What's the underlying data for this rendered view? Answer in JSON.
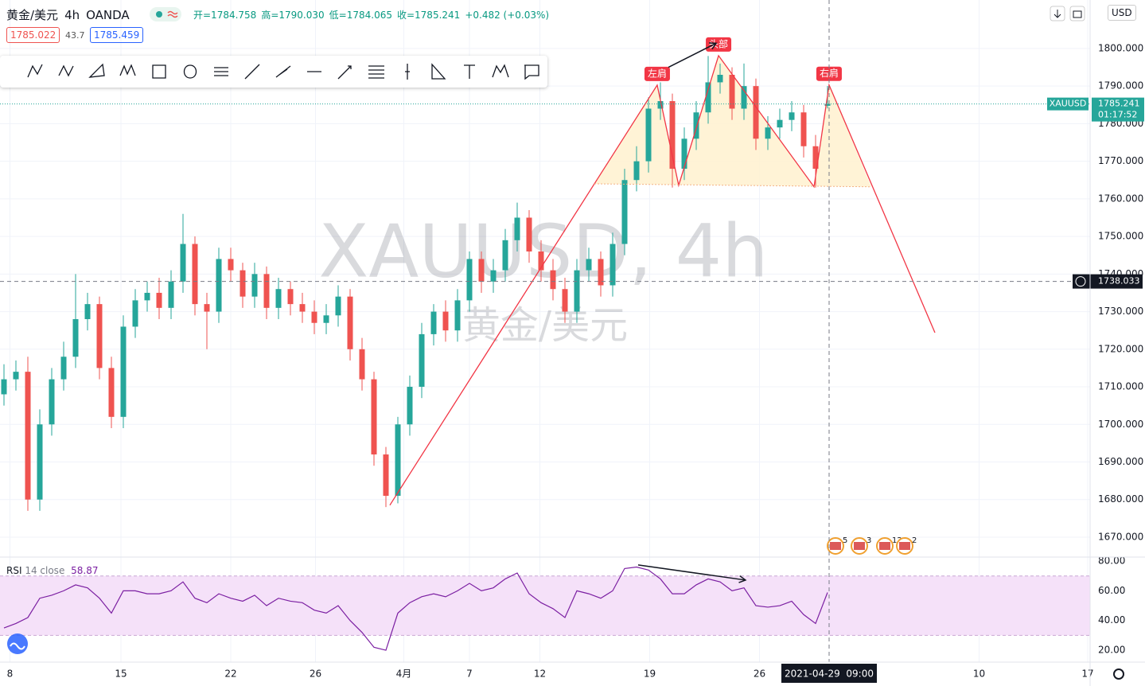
{
  "header": {
    "symbol": "黄金/美元",
    "interval": "4h",
    "source": "OANDA",
    "ohlc_text": [
      "开=1784.758",
      "高=1790.030",
      "低=1784.065",
      "收=1785.241",
      "+0.482 (+0.03%)"
    ],
    "bid": "1785.022",
    "spread": "43.7",
    "ask": "1785.459",
    "currency": "USD"
  },
  "chart_data": [
    {
      "type": "candlestick",
      "open": [
        1708,
        1712,
        1714,
        1680,
        1700,
        1712,
        1718,
        1728,
        1732,
        1715,
        1702,
        1726,
        1733,
        1735,
        1731,
        1738,
        1748,
        1732,
        1730,
        1744,
        1741,
        1734,
        1740,
        1731,
        1736,
        1732,
        1730,
        1727,
        1729,
        1734,
        1720,
        1712,
        1692,
        1681,
        1700,
        1710,
        1724,
        1730,
        1725,
        1733,
        1744,
        1738,
        1741,
        1749,
        1755,
        1746,
        1741,
        1736,
        1730,
        1741,
        1744,
        1737,
        1748,
        1765,
        1770,
        1784,
        1786,
        1768,
        1776,
        1783,
        1791,
        1793,
        1784,
        1790,
        1776,
        1779,
        1781,
        1783,
        1774,
        1784.758
      ],
      "high": [
        1716,
        1717,
        1718,
        1704,
        1715,
        1722,
        1740,
        1735,
        1734,
        1718,
        1729,
        1736,
        1738,
        1739,
        1741,
        1756,
        1750,
        1735,
        1747,
        1747,
        1743,
        1743,
        1742,
        1739,
        1738,
        1735,
        1733,
        1732,
        1737,
        1736,
        1723,
        1714,
        1694,
        1702,
        1713,
        1727,
        1732,
        1733,
        1736,
        1746,
        1746,
        1744,
        1752,
        1759,
        1757,
        1749,
        1744,
        1739,
        1744,
        1747,
        1746,
        1751,
        1768,
        1774,
        1787,
        1791,
        1788,
        1779,
        1786,
        1798,
        1796,
        1795,
        1796,
        1792,
        1782,
        1784,
        1786,
        1785,
        1777,
        1790.03
      ],
      "low": [
        1705,
        1709,
        1677,
        1677,
        1697,
        1709,
        1715,
        1725,
        1712,
        1699,
        1699,
        1723,
        1730,
        1728,
        1728,
        1735,
        1729,
        1720,
        1727,
        1738,
        1731,
        1731,
        1728,
        1728,
        1729,
        1727,
        1724,
        1724,
        1726,
        1717,
        1709,
        1689,
        1678,
        1679,
        1697,
        1707,
        1721,
        1722,
        1722,
        1730,
        1735,
        1735,
        1738,
        1746,
        1743,
        1738,
        1733,
        1727,
        1727,
        1738,
        1734,
        1734,
        1745,
        1762,
        1767,
        1781,
        1763,
        1765,
        1773,
        1780,
        1788,
        1781,
        1781,
        1773,
        1773,
        1776,
        1778,
        1771,
        1763,
        1784.065
      ],
      "close": [
        1712,
        1714,
        1680,
        1700,
        1712,
        1718,
        1728,
        1732,
        1715,
        1702,
        1726,
        1733,
        1735,
        1731,
        1738,
        1748,
        1732,
        1730,
        1744,
        1741,
        1734,
        1740,
        1731,
        1736,
        1732,
        1730,
        1727,
        1729,
        1734,
        1720,
        1712,
        1692,
        1681,
        1700,
        1710,
        1724,
        1730,
        1725,
        1733,
        1744,
        1738,
        1741,
        1749,
        1755,
        1746,
        1741,
        1736,
        1730,
        1741,
        1744,
        1737,
        1748,
        1765,
        1770,
        1784,
        1786,
        1768,
        1776,
        1783,
        1791,
        1793,
        1784,
        1790,
        1776,
        1779,
        1781,
        1783,
        1774,
        1768,
        1785.241
      ],
      "up_color": "#26a69a",
      "down_color": "#ef5350",
      "xlim": [
        -0.333,
        91
      ],
      "ylim": [
        1664.7,
        1812.9
      ],
      "yticks": [
        {
          "value": 1670,
          "label": "1670.000"
        },
        {
          "value": 1680,
          "label": "1680.000"
        },
        {
          "value": 1690,
          "label": "1690.000"
        },
        {
          "value": 1700,
          "label": "1700.000"
        },
        {
          "value": 1710,
          "label": "1710.000"
        },
        {
          "value": 1720,
          "label": "1720.000"
        },
        {
          "value": 1730,
          "label": "1730.000"
        },
        {
          "value": 1740,
          "label": "1740.000"
        },
        {
          "value": 1750,
          "label": "1750.000"
        },
        {
          "value": 1760,
          "label": "1760.000"
        },
        {
          "value": 1770,
          "label": "1770.000"
        },
        {
          "value": 1780,
          "label": "1780.000"
        },
        {
          "value": 1790,
          "label": "1790.000"
        },
        {
          "value": 1800,
          "label": "1800.000"
        }
      ],
      "xticks": [
        {
          "value": 0.5,
          "label": "8"
        },
        {
          "value": 9.8,
          "label": "15"
        },
        {
          "value": 19,
          "label": "22"
        },
        {
          "value": 26.1,
          "label": "26"
        },
        {
          "value": 33.5,
          "label": "4月"
        },
        {
          "value": 39,
          "label": "7"
        },
        {
          "value": 44.9,
          "label": "12"
        },
        {
          "value": 54.1,
          "label": "19"
        },
        {
          "value": 63.3,
          "label": "26"
        },
        {
          "value": 81.7,
          "label": "10"
        },
        {
          "value": 90.8,
          "label": "17"
        }
      ],
      "watermark": "XAUUSD, 4h",
      "watermark_subtitle": "黄金/美元",
      "pattern": {
        "color": "#f23645",
        "fill": "#fff1cf",
        "x": [
          32.33,
          54.73,
          56.53,
          59.87,
          67.87,
          69.13,
          78
        ],
        "y": [
          1678.5,
          1790.26,
          1763.6,
          1798.1,
          1763.2,
          1790.3,
          1724.4
        ],
        "neckline": {
          "x": [
            49.47,
            72.67
          ],
          "y": [
            1764.0,
            1763.2
          ]
        }
      },
      "annotations": [
        "左肩",
        "头部",
        "右肩"
      ],
      "arrow": {
        "x": [
          55.67,
          59.67
        ],
        "y": [
          1795,
          1801.4
        ]
      },
      "last_price": {
        "symbol": "XAUUSD",
        "value": 1785.241,
        "countdown": "01:17:52",
        "color": "#26a69a"
      },
      "crosshair": {
        "price": 1738.033,
        "time": "2021-04-29  09:00"
      },
      "events": [
        "5",
        "3",
        "12",
        "2"
      ]
    },
    {
      "type": "line",
      "title": "RSI",
      "params": "14 close",
      "color": "#7b1fa2",
      "values": [
        35,
        38,
        42,
        55,
        57,
        60,
        64,
        62,
        55,
        45,
        60,
        60,
        58,
        58,
        60,
        66,
        55,
        52,
        58,
        55,
        53,
        57,
        50,
        55,
        53,
        52,
        47,
        45,
        50,
        40,
        32,
        22,
        20,
        45,
        52,
        56,
        58,
        56,
        60,
        65,
        60,
        62,
        68,
        72,
        58,
        52,
        48,
        42,
        60,
        58,
        55,
        60,
        75,
        76,
        74,
        68,
        58,
        58,
        64,
        68,
        66,
        60,
        62,
        50,
        49,
        50,
        53,
        44,
        38,
        58.87
      ],
      "band": [
        30,
        70
      ],
      "band_color": "#f5e1f9",
      "ylim": [
        12,
        82.7
      ],
      "yticks": [
        {
          "value": 20,
          "label": "20.00"
        },
        {
          "value": 40,
          "label": "40.00"
        },
        {
          "value": 60,
          "label": "60.00"
        },
        {
          "value": 80,
          "label": "80.00"
        }
      ],
      "arrow": {
        "x": [
          53.13,
          62.13
        ],
        "y": [
          77.4,
          67.2
        ]
      }
    }
  ]
}
